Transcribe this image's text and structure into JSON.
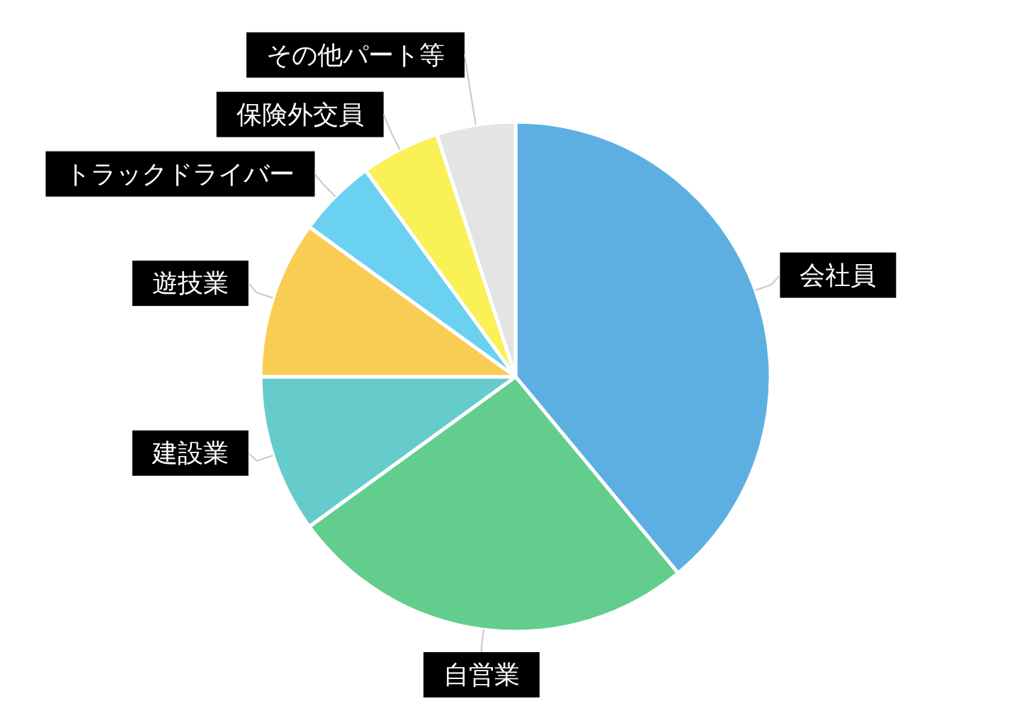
{
  "chart_data": {
    "type": "pie",
    "categories": [
      "会社員",
      "自営業",
      "建設業",
      "遊技業",
      "トラックドライバー",
      "保険外交員",
      "その他パート等"
    ],
    "values": [
      39,
      26,
      10,
      10,
      5,
      5,
      5
    ],
    "colors": [
      "#5dafe1",
      "#63cd8e",
      "#66cbcb",
      "#f9cc53",
      "#6ad1f0",
      "#f9f155",
      "#e4e4e4"
    ]
  }
}
